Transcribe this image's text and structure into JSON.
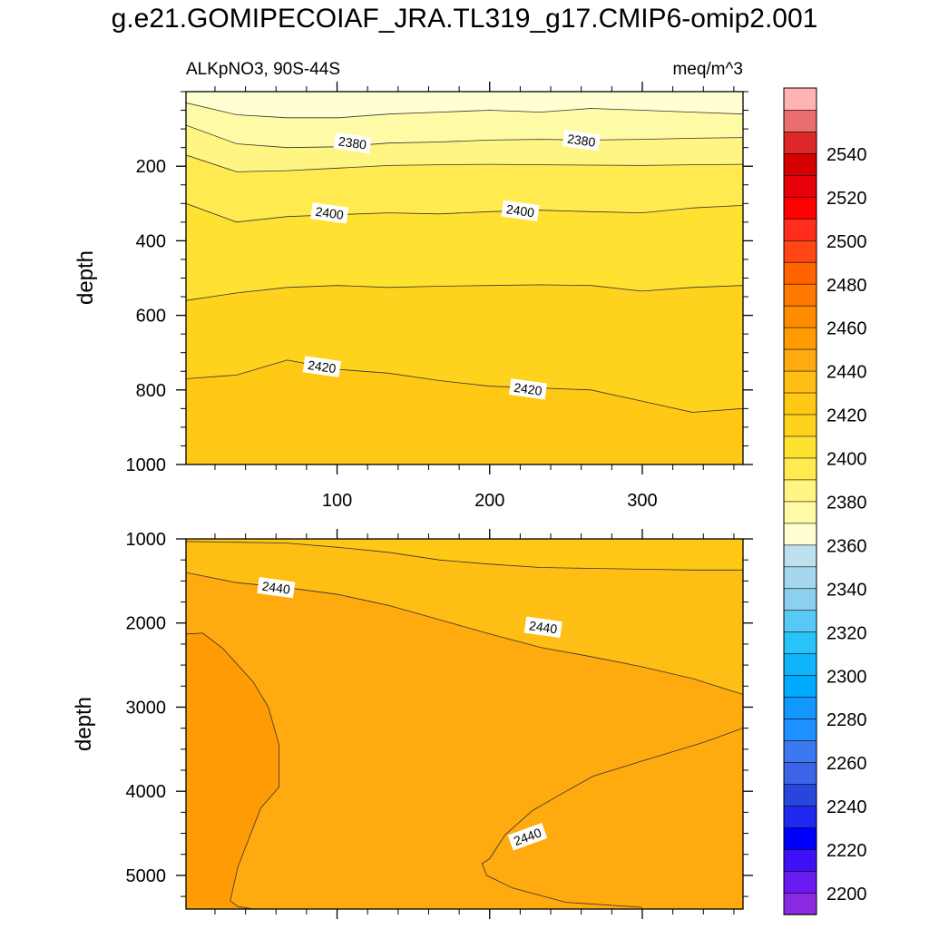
{
  "title": "g.e21.GOMIPECOIAF_JRA.TL319_g17.CMIP6-omip2.001",
  "chart_data": {
    "type": "heatmap",
    "variable": "ALKpNO3, 90S-44S",
    "units": "meq/m^3",
    "ylabel": "depth",
    "colorbar": {
      "levels": [
        2200,
        2210,
        2220,
        2230,
        2240,
        2250,
        2260,
        2270,
        2280,
        2290,
        2300,
        2310,
        2320,
        2330,
        2340,
        2350,
        2360,
        2370,
        2380,
        2390,
        2400,
        2410,
        2420,
        2430,
        2440,
        2450,
        2460,
        2470,
        2480,
        2490,
        2500,
        2510,
        2520,
        2530,
        2540,
        2550
      ],
      "tick_labels": [
        "2200",
        "2220",
        "2240",
        "2260",
        "2280",
        "2300",
        "2320",
        "2340",
        "2360",
        "2380",
        "2400",
        "2420",
        "2440",
        "2460",
        "2480",
        "2500",
        "2520",
        "2540"
      ],
      "colors": [
        "#8a2be2",
        "#6a19f0",
        "#3f10f5",
        "#0000fa",
        "#1e28f0",
        "#2846dc",
        "#3c64e6",
        "#3c78f0",
        "#1e90ff",
        "#1496ff",
        "#00aaff",
        "#0fb4fa",
        "#28c3fa",
        "#5ac8f5",
        "#8cd0f0",
        "#a5d7f0",
        "#bee1f0",
        "#ffffd2",
        "#fffaa5",
        "#fff582",
        "#ffeb50",
        "#ffe132",
        "#ffd21e",
        "#ffc814",
        "#ffbe14",
        "#ffaa0f",
        "#ff9b05",
        "#ff8c00",
        "#ff7800",
        "#ff6400",
        "#ff4614",
        "#ff2d1e",
        "#ff0000",
        "#e6000a",
        "#d70000",
        "#dc2828",
        "#eb6e6e",
        "#ffb4b4"
      ]
    },
    "panels": [
      {
        "name": "upper",
        "xlim": [
          1,
          366
        ],
        "ylim": [
          1000,
          0
        ],
        "xticks": [
          100,
          200,
          300
        ],
        "yticks": [
          200,
          400,
          600,
          800,
          1000
        ],
        "contours": [
          {
            "level": 2370,
            "depth": [
              30,
              62,
              70,
              70,
              60,
              55,
              50,
              55,
              45,
              50,
              55,
              60
            ]
          },
          {
            "level": 2380,
            "depth": [
              90,
              140,
              150,
              148,
              138,
              135,
              130,
              128,
              130,
              128,
              125,
              123
            ]
          },
          {
            "level": 2390,
            "depth": [
              170,
              215,
              212,
              205,
              198,
              196,
              195,
              196,
              197,
              198,
              196,
              195
            ]
          },
          {
            "level": 2400,
            "depth": [
              300,
              350,
              335,
              330,
              325,
              328,
              322,
              318,
              322,
              325,
              312,
              305
            ]
          },
          {
            "level": 2410,
            "depth": [
              560,
              540,
              525,
              520,
              525,
              522,
              520,
              518,
              520,
              535,
              525,
              520
            ]
          },
          {
            "level": 2420,
            "depth": [
              770,
              760,
              720,
              745,
              755,
              775,
              790,
              795,
              800,
              830,
              860,
              850
            ]
          }
        ],
        "contour_labels": [
          {
            "text": "2380",
            "x": 110,
            "depth": 140
          },
          {
            "text": "2380",
            "x": 260,
            "depth": 133
          },
          {
            "text": "2400",
            "x": 95,
            "depth": 328
          },
          {
            "text": "2400",
            "x": 220,
            "depth": 322
          },
          {
            "text": "2420",
            "x": 90,
            "depth": 740
          },
          {
            "text": "2420",
            "x": 225,
            "depth": 800
          }
        ]
      },
      {
        "name": "lower",
        "xlim": [
          1,
          366
        ],
        "ylim": [
          5400,
          1000
        ],
        "xticks": [
          100,
          200,
          300
        ],
        "yticks": [
          1000,
          2000,
          3000,
          4000,
          5000
        ],
        "contours": [
          {
            "level": 2430,
            "depth": [
              1030,
              1040,
              1050,
              1100,
              1160,
              1250,
              1300,
              1340,
              1350,
              1360,
              1370,
              1370
            ]
          },
          {
            "level": 2440,
            "depth": [
              1400,
              1520,
              1580,
              1660,
              1790,
              1960,
              2130,
              2290,
              2400,
              2520,
              2660,
              2850
            ]
          },
          {
            "level": 2450,
            "x": [
              1,
              12,
              25,
              45,
              55,
              62,
              62,
              50,
              35,
              30,
              35,
              45,
              50,
              1
            ],
            "depth": [
              2130,
              2120,
              2300,
              2700,
              3000,
              3450,
              3950,
              4200,
              4900,
              5300,
              5370,
              5400,
              5400,
              5400
            ]
          },
          {
            "level": 2440,
            "x": [
              366,
              340,
              300,
              268,
              250,
              228,
              210,
              200,
              195,
              198,
              215,
              250,
              300,
              345,
              366
            ],
            "depth": [
              3250,
              3420,
              3640,
              3820,
              4000,
              4230,
              4520,
              4800,
              4860,
              5000,
              5150,
              5320,
              5380,
              5320,
              5330
            ]
          }
        ],
        "contour_labels": [
          {
            "text": "2440",
            "x": 60,
            "depth": 1590
          },
          {
            "text": "2440",
            "x": 235,
            "depth": 2060
          },
          {
            "text": "2440",
            "x": 225,
            "depth": 4550
          }
        ]
      }
    ]
  }
}
